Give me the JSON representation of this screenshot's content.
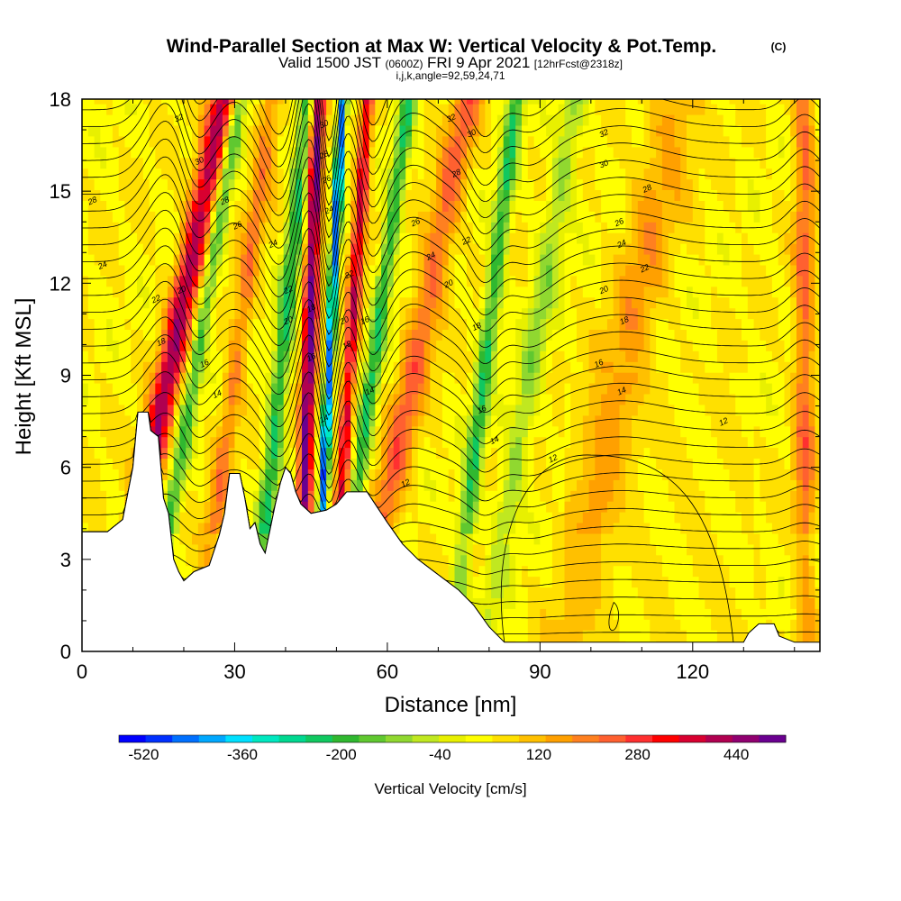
{
  "header": {
    "title": "Wind-Parallel Section at Max W: Vertical Velocity & Pot.Temp.",
    "copyright": "(C)",
    "subtitle_main": "Valid 1500 JST",
    "subtitle_utc": "(0600Z)",
    "subtitle_date": "FRI 9 Apr 2021",
    "subtitle_fcst": "[12hrFcst@2318z]",
    "subtitle_2": "i,j,k,angle=92,59,24,71"
  },
  "chart_data": {
    "type": "heatmap",
    "xlabel": "Distance [nm]",
    "ylabel": "Height [Kft MSL]",
    "xlim": [
      0,
      145
    ],
    "ylim": [
      0,
      18
    ],
    "xticks": [
      0,
      30,
      60,
      90,
      120
    ],
    "yticks": [
      0,
      3,
      6,
      9,
      12,
      15,
      18
    ],
    "colorbar": {
      "label": "Vertical Velocity [cm/s]",
      "tick_labels": [
        "-520",
        "-360",
        "-200",
        "-40",
        "120",
        "280",
        "440"
      ],
      "range": [
        -560,
        520
      ],
      "colors": [
        "#0000ff",
        "#0030ff",
        "#0070ff",
        "#00a8ff",
        "#00e0ff",
        "#00e8c0",
        "#00d890",
        "#10c860",
        "#30b830",
        "#60c830",
        "#90d830",
        "#c0e820",
        "#e8f000",
        "#ffff00",
        "#ffe000",
        "#ffc000",
        "#ffa000",
        "#ff8020",
        "#ff6030",
        "#ff3030",
        "#ff0000",
        "#d80030",
        "#b00050",
        "#900070",
        "#6a0090"
      ]
    },
    "terrain_kft": [
      [
        0,
        3.9
      ],
      [
        5,
        3.9
      ],
      [
        8,
        4.3
      ],
      [
        10,
        6.0
      ],
      [
        11,
        7.8
      ],
      [
        13,
        7.8
      ],
      [
        13.5,
        7.2
      ],
      [
        15,
        7.0
      ],
      [
        16,
        5.0
      ],
      [
        17,
        4.5
      ],
      [
        18,
        3.0
      ],
      [
        19,
        2.6
      ],
      [
        20,
        2.3
      ],
      [
        22,
        2.6
      ],
      [
        25,
        2.8
      ],
      [
        27,
        3.8
      ],
      [
        28,
        4.5
      ],
      [
        29,
        5.8
      ],
      [
        31,
        5.8
      ],
      [
        32,
        5.0
      ],
      [
        33,
        4.0
      ],
      [
        34,
        4.2
      ],
      [
        35,
        3.5
      ],
      [
        36,
        3.2
      ],
      [
        37,
        4.0
      ],
      [
        38,
        4.8
      ],
      [
        39,
        5.5
      ],
      [
        40,
        6.0
      ],
      [
        41,
        5.8
      ],
      [
        42,
        5.2
      ],
      [
        43,
        4.8
      ],
      [
        45,
        4.5
      ],
      [
        48,
        4.6
      ],
      [
        50,
        4.8
      ],
      [
        52,
        5.2
      ],
      [
        56,
        5.2
      ],
      [
        60,
        4.2
      ],
      [
        63,
        3.5
      ],
      [
        66,
        3.0
      ],
      [
        70,
        2.5
      ],
      [
        74,
        2.0
      ],
      [
        77,
        1.5
      ],
      [
        80,
        0.8
      ],
      [
        83,
        0.3
      ],
      [
        88,
        0.3
      ],
      [
        130,
        0.3
      ],
      [
        131,
        0.6
      ],
      [
        133,
        0.9
      ],
      [
        136,
        0.9
      ],
      [
        137,
        0.5
      ],
      [
        140,
        0.3
      ],
      [
        145,
        0.3
      ]
    ],
    "velocity_bands": [
      {
        "x": 17,
        "w": 2.6,
        "v": 380,
        "tilt": 1.2
      },
      {
        "x": 22,
        "w": 1.6,
        "v": -220,
        "tilt": 1.0
      },
      {
        "x": 30,
        "w": 2.0,
        "v": 150,
        "tilt": 0.8
      },
      {
        "x": 39,
        "w": 1.8,
        "v": -260,
        "tilt": 0.6
      },
      {
        "x": 44.5,
        "w": 1.4,
        "v": 470,
        "tilt": 0.2
      },
      {
        "x": 48.5,
        "w": 0.9,
        "v": -520,
        "tilt": 0.3
      },
      {
        "x": 52.5,
        "w": 1.3,
        "v": 330,
        "tilt": 0.4
      },
      {
        "x": 57,
        "w": 1.6,
        "v": -260,
        "tilt": 0.8
      },
      {
        "x": 65,
        "w": 3.0,
        "v": 190,
        "tilt": 1.2
      },
      {
        "x": 79,
        "w": 1.7,
        "v": -250,
        "tilt": 0.7
      },
      {
        "x": 88,
        "w": 2.5,
        "v": -140,
        "tilt": 1.0
      },
      {
        "x": 106,
        "w": 5.0,
        "v": 110,
        "tilt": 1.2
      },
      {
        "x": 142,
        "w": 2.0,
        "v": 180,
        "tilt": 0.0
      }
    ],
    "contour_levels": [
      12,
      14,
      16,
      18,
      20,
      22,
      24,
      26,
      28,
      30,
      32
    ],
    "contour_labels": [
      {
        "t": "32",
        "x": 19.0,
        "y": 17.4
      },
      {
        "t": "30",
        "x": 23.0,
        "y": 16.0
      },
      {
        "t": "28",
        "x": 28.0,
        "y": 14.7
      },
      {
        "t": "26",
        "x": 30.5,
        "y": 13.9
      },
      {
        "t": "24",
        "x": 37.5,
        "y": 13.3
      },
      {
        "t": "22",
        "x": 14.5,
        "y": 11.5
      },
      {
        "t": "20",
        "x": 19.5,
        "y": 11.8
      },
      {
        "t": "18",
        "x": 15.5,
        "y": 10.1
      },
      {
        "t": "16",
        "x": 24.0,
        "y": 9.4
      },
      {
        "t": "14",
        "x": 26.5,
        "y": 8.4
      },
      {
        "t": "28",
        "x": 2.0,
        "y": 14.7
      },
      {
        "t": "24",
        "x": 4.0,
        "y": 12.6
      },
      {
        "t": "22",
        "x": 40.5,
        "y": 11.8
      },
      {
        "t": "20",
        "x": 40.5,
        "y": 10.8
      },
      {
        "t": "30",
        "x": 47.5,
        "y": 17.2
      },
      {
        "t": "28",
        "x": 47.5,
        "y": 16.2
      },
      {
        "t": "26",
        "x": 48.0,
        "y": 15.4
      },
      {
        "t": "24",
        "x": 48.5,
        "y": 14.4
      },
      {
        "t": "22",
        "x": 52.5,
        "y": 12.3
      },
      {
        "t": "20",
        "x": 51.5,
        "y": 10.8
      },
      {
        "t": "18",
        "x": 45.0,
        "y": 11.2
      },
      {
        "t": "18",
        "x": 52.0,
        "y": 10.0
      },
      {
        "t": "16",
        "x": 45.0,
        "y": 9.6
      },
      {
        "t": "16",
        "x": 55.5,
        "y": 10.8
      },
      {
        "t": "14",
        "x": 47.5,
        "y": 7.6
      },
      {
        "t": "14",
        "x": 56.5,
        "y": 8.5
      },
      {
        "t": "32",
        "x": 72.5,
        "y": 17.4
      },
      {
        "t": "30",
        "x": 76.5,
        "y": 16.9
      },
      {
        "t": "28",
        "x": 73.5,
        "y": 15.6
      },
      {
        "t": "26",
        "x": 65.5,
        "y": 14.0
      },
      {
        "t": "24",
        "x": 68.5,
        "y": 12.9
      },
      {
        "t": "22",
        "x": 75.5,
        "y": 13.4
      },
      {
        "t": "20",
        "x": 72.0,
        "y": 12.0
      },
      {
        "t": "18",
        "x": 77.5,
        "y": 10.6
      },
      {
        "t": "16",
        "x": 78.5,
        "y": 7.9
      },
      {
        "t": "14",
        "x": 81.0,
        "y": 6.9
      },
      {
        "t": "12",
        "x": 63.5,
        "y": 5.5
      },
      {
        "t": "12",
        "x": 92.5,
        "y": 6.3
      },
      {
        "t": "32",
        "x": 102.5,
        "y": 16.9
      },
      {
        "t": "30",
        "x": 102.5,
        "y": 15.9
      },
      {
        "t": "28",
        "x": 111.0,
        "y": 15.1
      },
      {
        "t": "26",
        "x": 105.5,
        "y": 14.0
      },
      {
        "t": "24",
        "x": 106.0,
        "y": 13.3
      },
      {
        "t": "22",
        "x": 110.5,
        "y": 12.5
      },
      {
        "t": "20",
        "x": 102.5,
        "y": 11.8
      },
      {
        "t": "18",
        "x": 106.5,
        "y": 10.8
      },
      {
        "t": "16",
        "x": 101.5,
        "y": 9.4
      },
      {
        "t": "14",
        "x": 106.0,
        "y": 8.5
      },
      {
        "t": "12",
        "x": 126.0,
        "y": 7.5
      }
    ]
  }
}
